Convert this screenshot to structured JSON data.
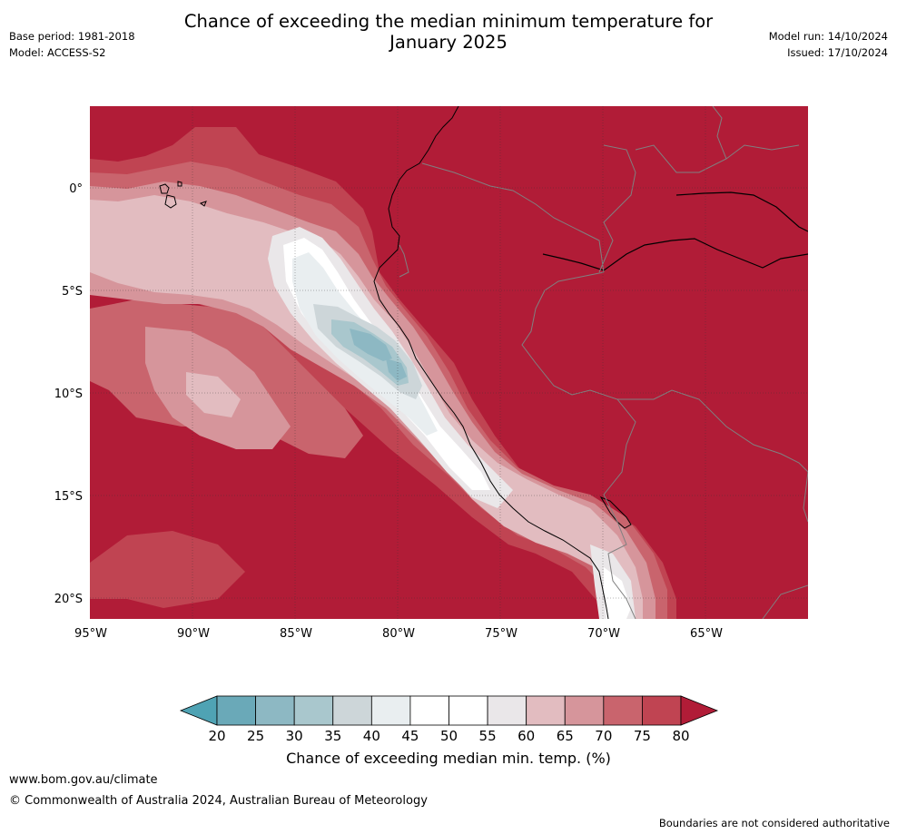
{
  "header": {
    "title_line1": "Chance of exceeding the median minimum temperature for",
    "title_line2": "January 2025",
    "base_period": "Base period: 1981-2018",
    "model": "Model: ACCESS-S2",
    "model_run": "Model run: 14/10/2024",
    "issued": "Issued: 17/10/2024"
  },
  "map": {
    "lon_ticks": [
      "95°W",
      "90°W",
      "85°W",
      "80°W",
      "75°W",
      "70°W",
      "65°W"
    ],
    "lat_ticks": [
      "0°",
      "5°S",
      "10°S",
      "15°S",
      "20°S"
    ],
    "colors": {
      "land": "#b11c37",
      "ocean_dark": "#b11c37",
      "band_75": "#c04452",
      "band_70": "#c9646d",
      "band_65": "#d6959b",
      "band_60": "#e2bcc0",
      "band_55": "#eae7e9",
      "band_50": "#ffffff",
      "band_40": "#e9eef0",
      "band_35": "#cdd6d9",
      "band_30": "#a9c7cd",
      "band_25": "#8db8c3",
      "band_20": "#6aa9b8",
      "coast": "#000000",
      "border": "#808080"
    }
  },
  "colorbar": {
    "ticks": [
      "20",
      "25",
      "30",
      "35",
      "40",
      "45",
      "50",
      "55",
      "60",
      "65",
      "70",
      "75",
      "80"
    ],
    "colors": [
      "#4fa3b4",
      "#6aa9b8",
      "#8db8c3",
      "#a9c7cd",
      "#cdd6d9",
      "#e9eef0",
      "#ffffff",
      "#ffffff",
      "#eae7e9",
      "#e2bcc0",
      "#d6959b",
      "#c9646d",
      "#c04452",
      "#b11c37"
    ],
    "label": "Chance of exceeding median min. temp. (%)"
  },
  "footer": {
    "url": "www.bom.gov.au/climate",
    "copyright": "© Commonwealth of Australia 2024, Australian Bureau of Meteorology",
    "disclaimer": "Boundaries are not considered authoritative"
  }
}
